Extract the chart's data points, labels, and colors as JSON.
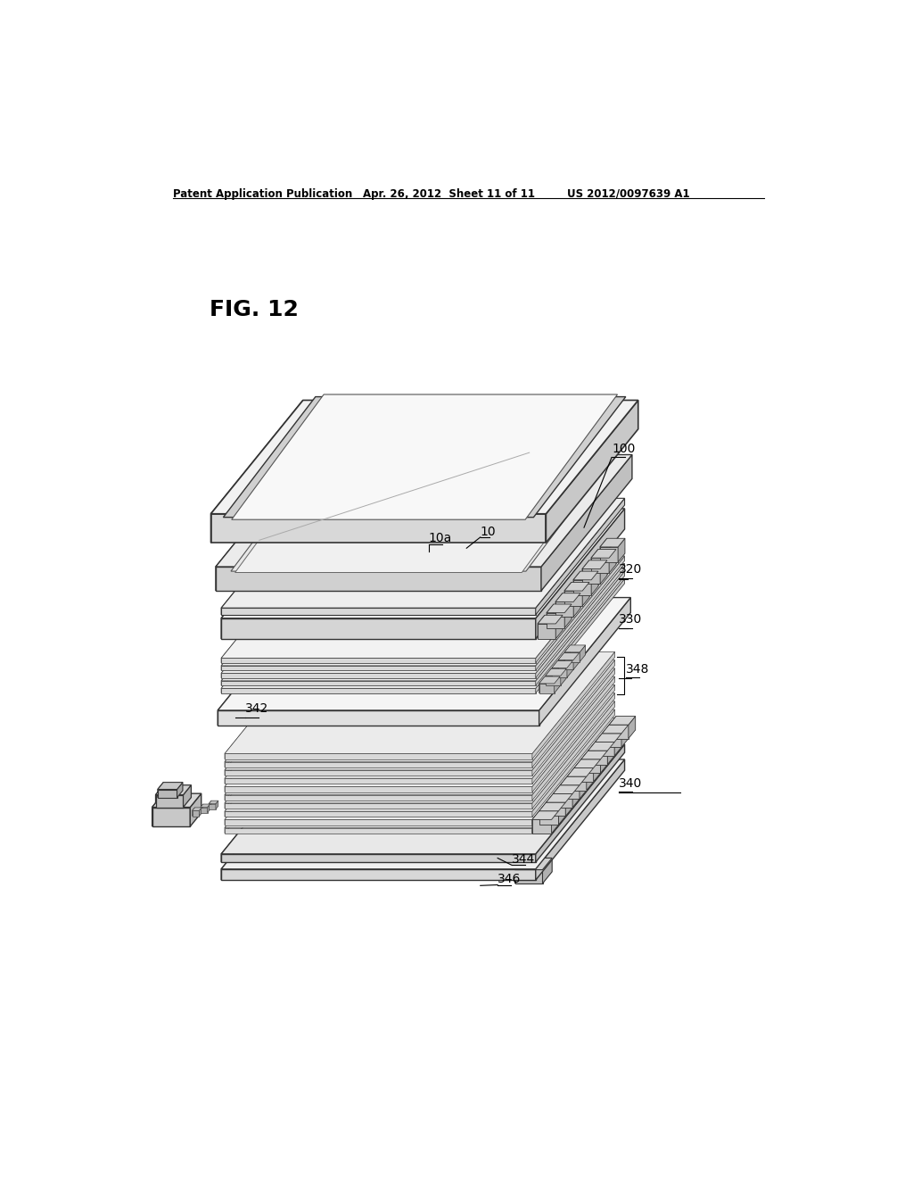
{
  "bg_color": "#ffffff",
  "header_left": "Patent Application Publication",
  "header_mid": "Apr. 26, 2012  Sheet 11 of 11",
  "header_right": "US 2012/0097639 A1",
  "fig_label": "FIG. 12"
}
